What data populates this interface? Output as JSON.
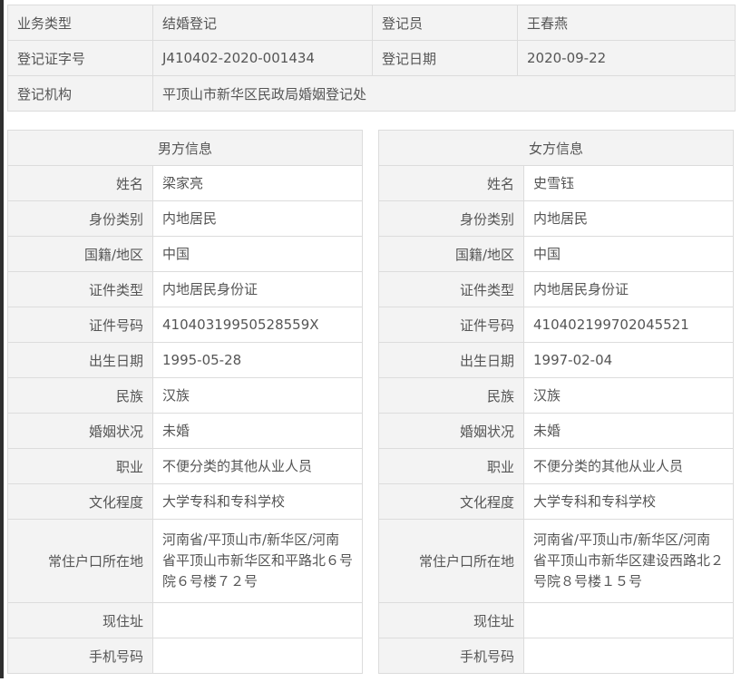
{
  "summary": {
    "rows": [
      [
        {
          "label": "业务类型",
          "value": "结婚登记"
        },
        {
          "label": "登记员",
          "value": "王春燕"
        }
      ],
      [
        {
          "label": "登记证字号",
          "value": "J410402-2020-001434"
        },
        {
          "label": "登记日期",
          "value": "2020-09-22"
        }
      ]
    ],
    "agency_label": "登记机构",
    "agency_value": "平顶山市新华区民政局婚姻登记处"
  },
  "labels": [
    "姓名",
    "身份类别",
    "国籍/地区",
    "证件类型",
    "证件号码",
    "出生日期",
    "民族",
    "婚姻状况",
    "职业",
    "文化程度",
    "常住户口所在地",
    "现住址",
    "手机号码"
  ],
  "male": {
    "title": "男方信息",
    "values": [
      "梁家亮",
      "内地居民",
      "中国",
      "内地居民身份证",
      "41040319950528559X",
      "1995-05-28",
      "汉族",
      "未婚",
      "不便分类的其他从业人员",
      "大学专科和专科学校",
      "河南省/平顶山市/新华区/河南省平顶山市新华区和平路北６号院６号楼７２号",
      "",
      ""
    ]
  },
  "female": {
    "title": "女方信息",
    "values": [
      "史雪钰",
      "内地居民",
      "中国",
      "内地居民身份证",
      "410402199702045521",
      "1997-02-04",
      "汉族",
      "未婚",
      "不便分类的其他从业人员",
      "大学专科和专科学校",
      "河南省/平顶山市/新华区/河南省平顶山市新华区建设西路北２号院８号楼１５号",
      "",
      ""
    ]
  }
}
